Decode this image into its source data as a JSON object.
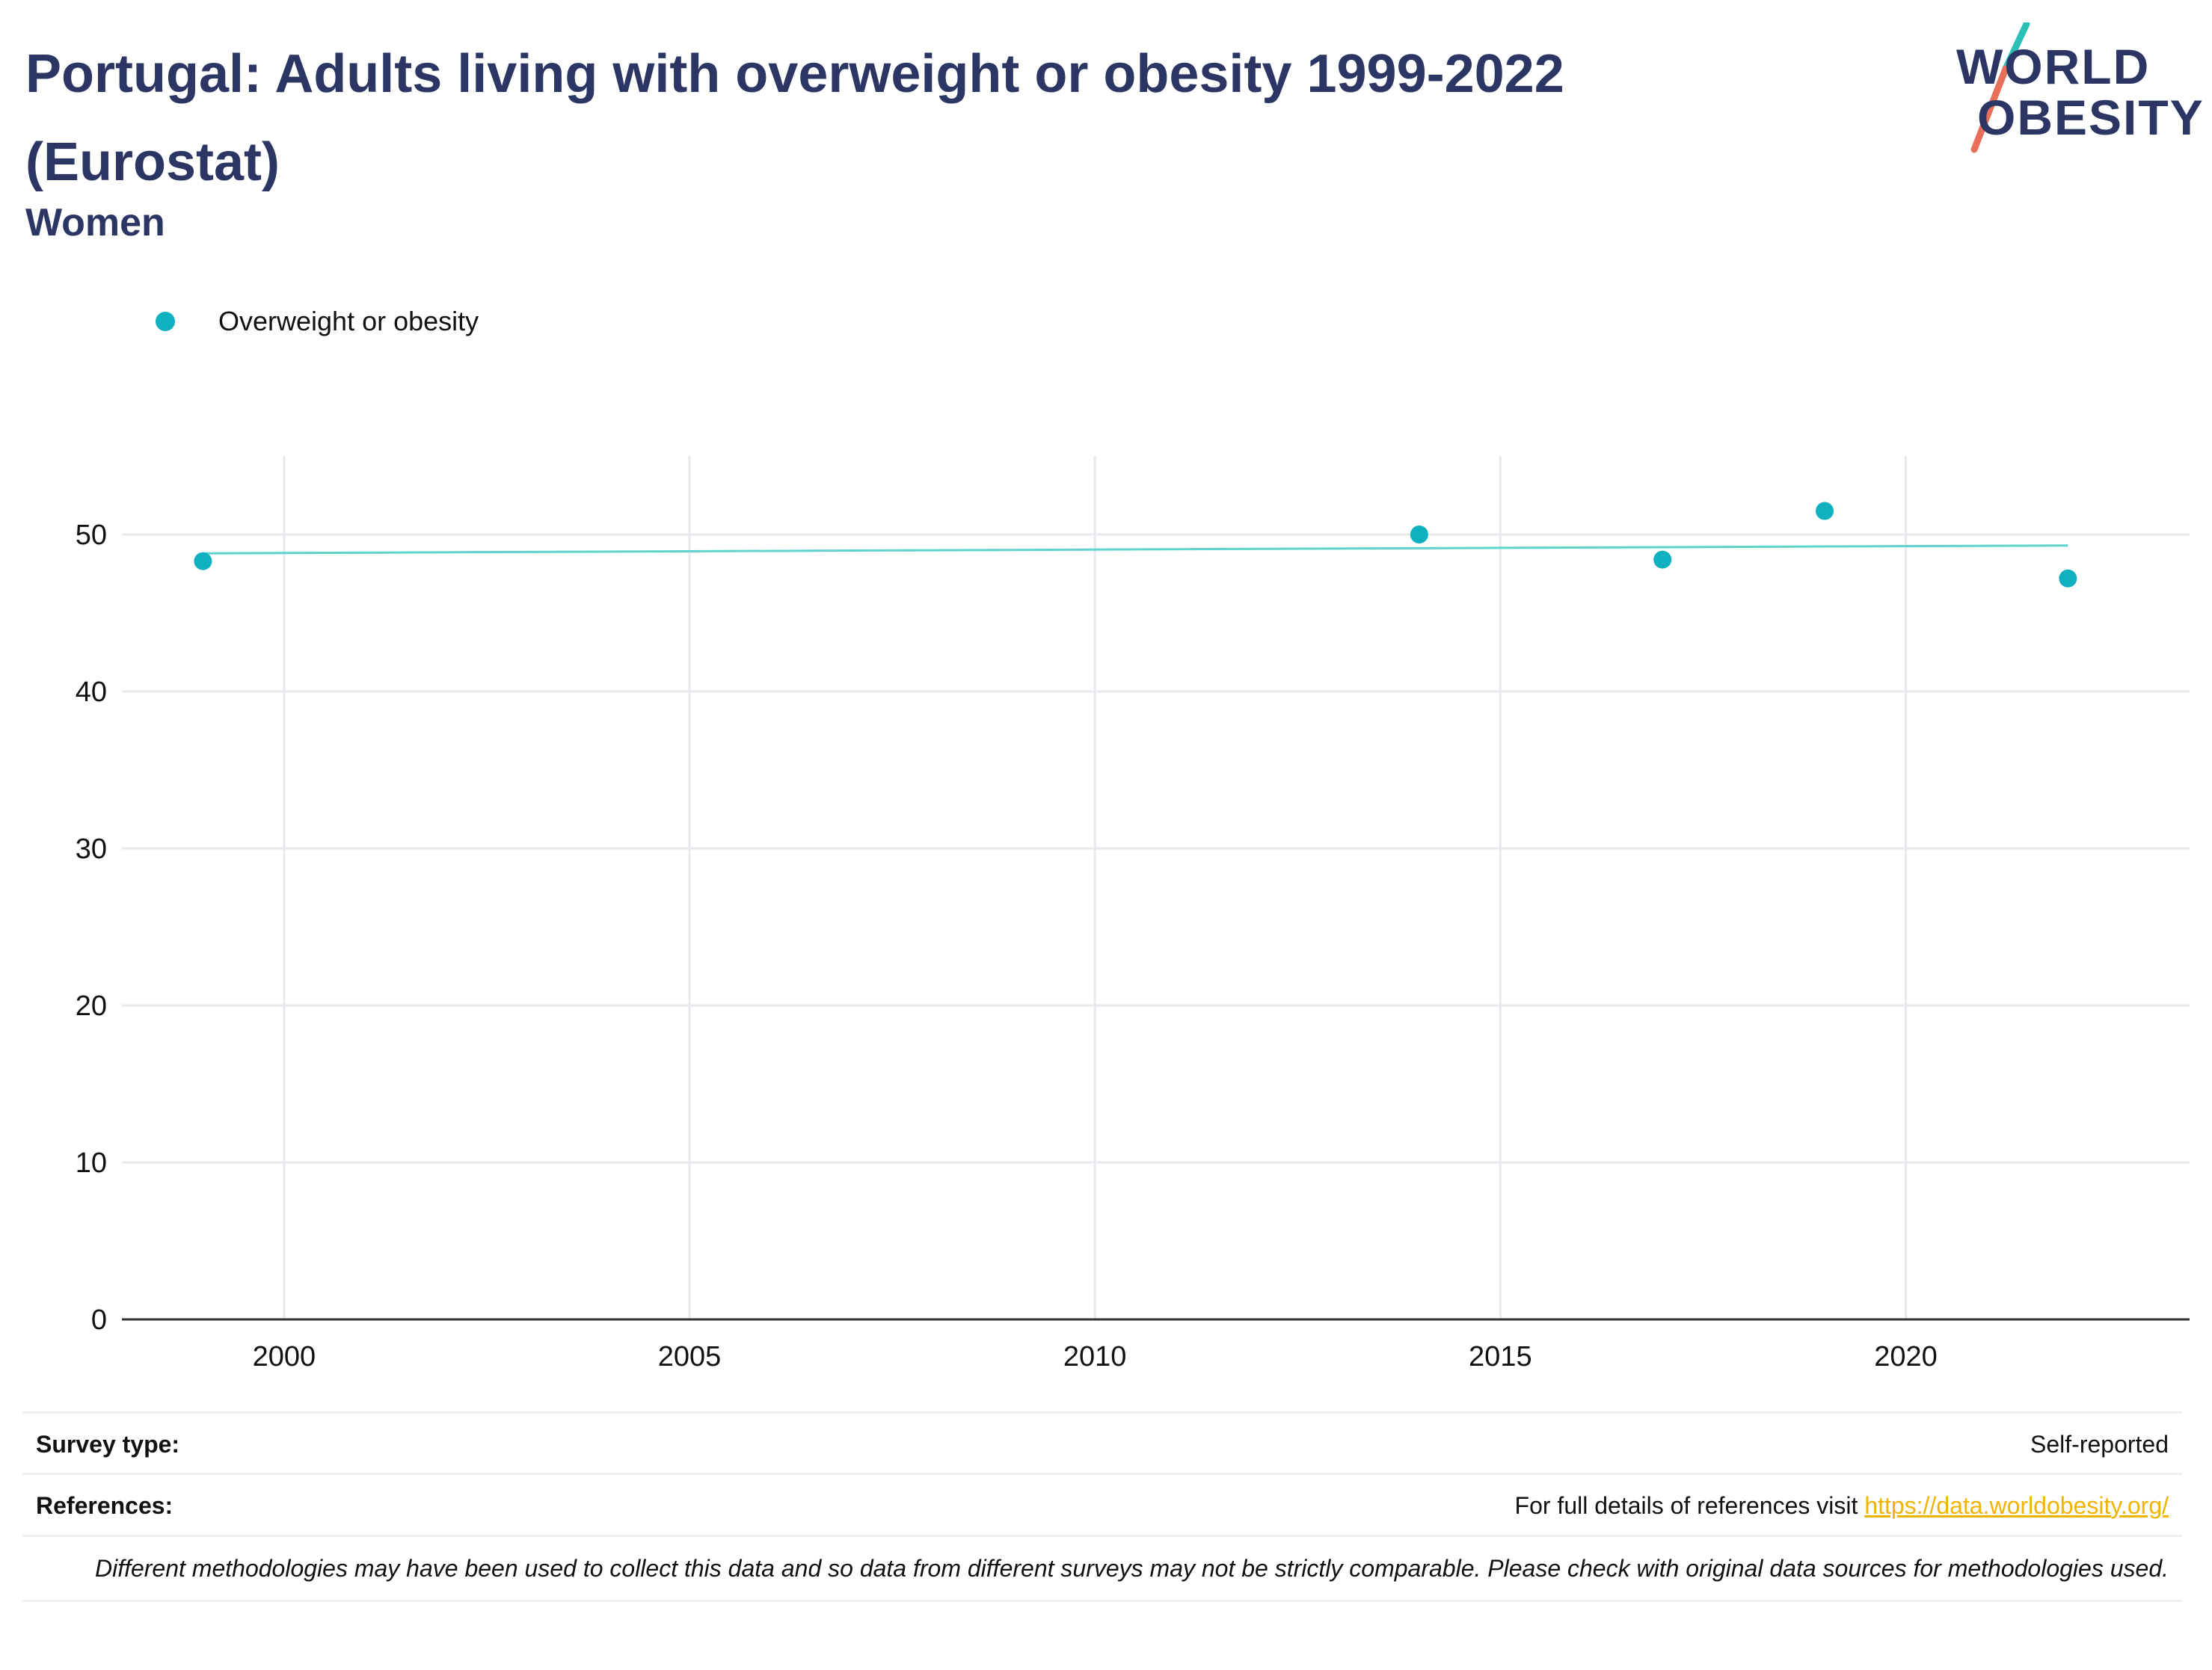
{
  "header": {
    "title": "Portugal: Adults living with overweight or obesity 1999-2022 (Eurostat)",
    "subtitle": "Women"
  },
  "logo": {
    "line1": "WORLD",
    "line2": "OBESITY",
    "accent_colors": [
      "#2bbfb5",
      "#e8705a"
    ]
  },
  "legend": {
    "label": "Overweight or obesity"
  },
  "chart_data": {
    "type": "scatter",
    "title": "Portugal: Adults living with overweight or obesity 1999-2022 (Eurostat)",
    "subtitle": "Women",
    "xlabel": "",
    "ylabel": "",
    "xlim": [
      1998,
      2023.5
    ],
    "ylim": [
      0,
      55
    ],
    "x_ticks": [
      2000,
      2005,
      2010,
      2015,
      2020
    ],
    "y_ticks": [
      0,
      10,
      20,
      30,
      40,
      50
    ],
    "grid": true,
    "legend_position": "top-left",
    "series": [
      {
        "name": "Overweight or obesity",
        "color": "#0fb1bf",
        "x": [
          1999,
          2014,
          2017,
          2019,
          2022
        ],
        "y": [
          48.3,
          50.0,
          48.4,
          51.5,
          47.2
        ]
      }
    ],
    "trendline": {
      "color": "#5fd3cc",
      "x": [
        1999,
        2022
      ],
      "y": [
        48.8,
        49.3
      ]
    }
  },
  "info": {
    "survey_type_label": "Survey type:",
    "survey_type_value": "Self-reported",
    "references_label": "References:",
    "references_text": "For full details of references visit ",
    "references_link": "https://data.worldobesity.org/",
    "note": "Different methodologies may have been used to collect this data and so data from different surveys may not be strictly comparable. Please check with original data sources for methodologies used."
  }
}
